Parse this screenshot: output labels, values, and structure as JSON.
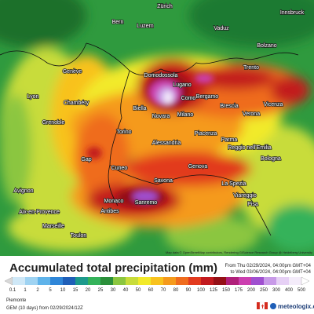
{
  "map": {
    "cities": [
      {
        "label": "Zürich"
      },
      {
        "label": "Luzern"
      },
      {
        "label": "Bern"
      },
      {
        "label": "Vaduz"
      },
      {
        "label": "Innsbruck"
      },
      {
        "label": "Genève"
      },
      {
        "label": "Lyon"
      },
      {
        "label": "Chambéry"
      },
      {
        "label": "Grenoble"
      },
      {
        "label": "Domodossola"
      },
      {
        "label": "Lugano"
      },
      {
        "label": "Como"
      },
      {
        "label": "Biella"
      },
      {
        "label": "Novara"
      },
      {
        "label": "Milano"
      },
      {
        "label": "Bergamo"
      },
      {
        "label": "Brescia"
      },
      {
        "label": "Bolzano"
      },
      {
        "label": "Trento"
      },
      {
        "label": "Verona"
      },
      {
        "label": "Vicenza"
      },
      {
        "label": "Torino"
      },
      {
        "label": "Alessandria"
      },
      {
        "label": "Piacenza"
      },
      {
        "label": "Parma"
      },
      {
        "label": "Reggio nell'Emilia"
      },
      {
        "label": "Bologna"
      },
      {
        "label": "Genova"
      },
      {
        "label": "Cuneo"
      },
      {
        "label": "Gap"
      },
      {
        "label": "Savona"
      },
      {
        "label": "La Spezia"
      },
      {
        "label": "Viareggio"
      },
      {
        "label": "Pisa"
      },
      {
        "label": "Avignon"
      },
      {
        "label": "Aix-en-Provence"
      },
      {
        "label": "Monaco"
      },
      {
        "label": "Sanremo"
      },
      {
        "label": "Antibes"
      },
      {
        "label": "Marseille"
      },
      {
        "label": "Toulon"
      }
    ],
    "attribution": "Map data © OpenStreetMap contributors, Rendering GIScience Research Group @ Heidelberg University"
  },
  "legend": {
    "title": "Accumulated total precipitation (mm)",
    "period_from": "From Thu 02/29/2024, 04:00pm GMT+04",
    "period_to": "to Wed 03/06/2024, 04:00pm GMT+04",
    "ticks": [
      0.1,
      1,
      2,
      5,
      10,
      15,
      20,
      25,
      30,
      40,
      50,
      60,
      70,
      80,
      90,
      100,
      125,
      150,
      175,
      200,
      250,
      300,
      400,
      500
    ],
    "colors": [
      "#d8d8d8",
      "#cfe8f7",
      "#9fd3f2",
      "#5fb3ea",
      "#2f86d8",
      "#1f5fb8",
      "#1d9a8c",
      "#34b25a",
      "#2b8f3a",
      "#8bc63f",
      "#c8dc3a",
      "#f2ea2a",
      "#f8c21e",
      "#f59a1c",
      "#ef6c1e",
      "#e23b1f",
      "#c21a1f",
      "#951017",
      "#b0207a",
      "#cc3fb0",
      "#a050d0",
      "#c89ae8",
      "#e6d0f5",
      "#f4ecfa",
      "#ffffff"
    ]
  },
  "footer": {
    "region": "Piemonte",
    "model": "GEM (10 days) from 02/29/2024/12Z",
    "brand": "meteologix.com"
  }
}
